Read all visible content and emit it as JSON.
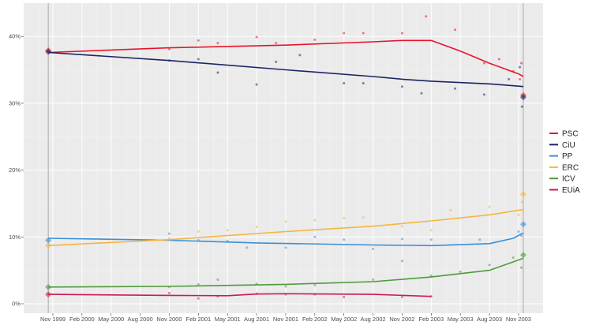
{
  "chart_data": {
    "type": "line",
    "title": "",
    "xlabel": "",
    "ylabel": "",
    "ylim": [
      0,
      45
    ],
    "yticks": [
      0,
      10,
      20,
      30,
      40
    ],
    "ytick_labels": [
      "0%",
      "10%",
      "20%",
      "30%",
      "40%"
    ],
    "xticks": [
      "1999-11-01",
      "2000-02-01",
      "2000-05-01",
      "2000-08-01",
      "2000-11-01",
      "2001-02-01",
      "2001-05-01",
      "2001-08-01",
      "2001-11-01",
      "2002-02-01",
      "2002-05-01",
      "2002-08-01",
      "2002-11-01",
      "2003-02-01",
      "2003-05-01",
      "2003-08-01",
      "2003-11-01"
    ],
    "xtick_labels": [
      "Nov 1999",
      "Feb 2000",
      "May 2000",
      "Aug 2000",
      "Nov 2000",
      "Feb 2001",
      "May 2001",
      "Aug 2001",
      "Nov 2001",
      "Feb 2002",
      "May 2002",
      "Aug 2002",
      "Nov 2002",
      "Feb 2003",
      "May 2003",
      "Aug 2003",
      "Nov 2003"
    ],
    "election_dates": [
      "1999-10-17",
      "2003-11-16"
    ],
    "grid": true,
    "legend_position": "right",
    "series": [
      {
        "name": "PSC",
        "color": "#e8132b",
        "trend": [
          [
            "1999-10-17",
            37.6
          ],
          [
            "2000-11-01",
            38.3
          ],
          [
            "2001-11-01",
            38.7
          ],
          [
            "2002-08-01",
            39.2
          ],
          [
            "2002-11-01",
            39.4
          ],
          [
            "2003-02-01",
            39.4
          ],
          [
            "2003-05-01",
            37.8
          ],
          [
            "2003-08-01",
            36.0
          ],
          [
            "2003-11-01",
            34.4
          ],
          [
            "2003-11-16",
            34.0
          ]
        ],
        "polls": [
          [
            "2000-11-01",
            38.1
          ],
          [
            "2001-02-01",
            39.4
          ],
          [
            "2001-04-01",
            39.0
          ],
          [
            "2001-08-01",
            39.9
          ],
          [
            "2001-10-01",
            39.0
          ],
          [
            "2002-02-01",
            39.5
          ],
          [
            "2002-05-01",
            40.5
          ],
          [
            "2002-07-01",
            40.5
          ],
          [
            "2002-11-01",
            40.5
          ],
          [
            "2003-01-15",
            43.0
          ],
          [
            "2003-04-15",
            41.0
          ],
          [
            "2003-07-15",
            36.0
          ],
          [
            "2003-09-01",
            36.6
          ],
          [
            "2003-10-15",
            34.8
          ],
          [
            "2003-11-05",
            33.6
          ],
          [
            "2003-11-10",
            36.0
          ]
        ],
        "results": [
          [
            "1999-10-17",
            37.9
          ],
          [
            "2003-11-16",
            31.2
          ]
        ]
      },
      {
        "name": "CiU",
        "color": "#1b2462",
        "trend": [
          [
            "1999-10-17",
            37.6
          ],
          [
            "2000-11-01",
            36.4
          ],
          [
            "2001-11-01",
            35.0
          ],
          [
            "2002-08-01",
            34.0
          ],
          [
            "2002-11-01",
            33.6
          ],
          [
            "2003-02-01",
            33.3
          ],
          [
            "2003-08-01",
            32.9
          ],
          [
            "2003-11-16",
            32.5
          ]
        ],
        "polls": [
          [
            "2000-11-01",
            36.4
          ],
          [
            "2001-02-01",
            36.6
          ],
          [
            "2001-04-01",
            34.6
          ],
          [
            "2001-08-01",
            32.8
          ],
          [
            "2001-10-01",
            36.2
          ],
          [
            "2001-12-15",
            37.2
          ],
          [
            "2002-05-01",
            33.0
          ],
          [
            "2002-07-01",
            33.0
          ],
          [
            "2002-11-01",
            32.5
          ],
          [
            "2003-01-01",
            31.5
          ],
          [
            "2003-04-15",
            32.2
          ],
          [
            "2003-07-15",
            31.3
          ],
          [
            "2003-10-01",
            33.6
          ],
          [
            "2003-11-05",
            35.4
          ],
          [
            "2003-11-12",
            29.5
          ]
        ],
        "results": [
          [
            "1999-10-17",
            37.7
          ],
          [
            "2003-11-16",
            30.9
          ]
        ]
      },
      {
        "name": "PP",
        "color": "#3a90d6",
        "trend": [
          [
            "1999-10-17",
            9.8
          ],
          [
            "2000-11-01",
            9.5
          ],
          [
            "2001-08-01",
            9.1
          ],
          [
            "2002-08-01",
            8.8
          ],
          [
            "2003-02-01",
            8.7
          ],
          [
            "2003-08-01",
            9.0
          ],
          [
            "2003-10-15",
            9.8
          ],
          [
            "2003-11-16",
            10.6
          ]
        ],
        "polls": [
          [
            "2000-11-01",
            10.5
          ],
          [
            "2001-02-01",
            9.5
          ],
          [
            "2001-05-01",
            9.4
          ],
          [
            "2001-07-01",
            8.4
          ],
          [
            "2001-11-01",
            8.4
          ],
          [
            "2002-02-01",
            10.0
          ],
          [
            "2002-05-01",
            9.6
          ],
          [
            "2002-08-01",
            8.2
          ],
          [
            "2002-11-01",
            9.7
          ],
          [
            "2003-02-01",
            9.6
          ],
          [
            "2003-07-01",
            9.6
          ],
          [
            "2003-11-01",
            10.8
          ],
          [
            "2003-11-10",
            10.2
          ]
        ],
        "results": [
          [
            "1999-10-17",
            9.5
          ],
          [
            "2003-11-16",
            11.9
          ]
        ]
      },
      {
        "name": "ERC",
        "color": "#f5b541",
        "trend": [
          [
            "1999-10-17",
            8.7
          ],
          [
            "2000-11-01",
            9.6
          ],
          [
            "2001-11-01",
            10.8
          ],
          [
            "2002-08-01",
            11.6
          ],
          [
            "2003-02-01",
            12.4
          ],
          [
            "2003-08-01",
            13.3
          ],
          [
            "2003-11-16",
            14.1
          ]
        ],
        "polls": [
          [
            "2000-11-01",
            9.8
          ],
          [
            "2001-02-01",
            10.8
          ],
          [
            "2001-05-01",
            11.0
          ],
          [
            "2001-08-01",
            11.5
          ],
          [
            "2001-11-01",
            12.3
          ],
          [
            "2002-02-01",
            12.5
          ],
          [
            "2002-05-01",
            12.8
          ],
          [
            "2002-07-01",
            12.9
          ],
          [
            "2002-11-01",
            11.6
          ],
          [
            "2003-02-01",
            11.0
          ],
          [
            "2003-04-01",
            14.0
          ],
          [
            "2003-08-01",
            14.5
          ],
          [
            "2003-11-01",
            13.3
          ],
          [
            "2003-11-12",
            15.2
          ]
        ],
        "results": [
          [
            "1999-10-17",
            8.7
          ],
          [
            "2003-11-16",
            16.4
          ]
        ]
      },
      {
        "name": "ICV",
        "color": "#4f9a3d",
        "trend": [
          [
            "1999-10-17",
            2.5
          ],
          [
            "2000-11-01",
            2.6
          ],
          [
            "2001-11-01",
            2.9
          ],
          [
            "2002-08-01",
            3.3
          ],
          [
            "2003-02-01",
            4.0
          ],
          [
            "2003-08-01",
            5.0
          ],
          [
            "2003-11-16",
            6.8
          ]
        ],
        "polls": [
          [
            "2000-11-01",
            2.5
          ],
          [
            "2001-02-01",
            2.9
          ],
          [
            "2001-04-01",
            3.6
          ],
          [
            "2001-08-01",
            3.0
          ],
          [
            "2001-11-01",
            2.6
          ],
          [
            "2002-02-01",
            2.8
          ],
          [
            "2002-08-01",
            3.6
          ],
          [
            "2002-11-01",
            6.4
          ],
          [
            "2003-02-01",
            4.2
          ],
          [
            "2003-05-01",
            4.8
          ],
          [
            "2003-08-01",
            5.8
          ],
          [
            "2003-10-15",
            6.9
          ],
          [
            "2003-11-10",
            5.4
          ]
        ],
        "results": [
          [
            "1999-10-17",
            2.5
          ],
          [
            "2003-11-16",
            7.3
          ]
        ]
      },
      {
        "name": "EUiA",
        "color": "#cc1a4f",
        "trend": [
          [
            "1999-10-17",
            1.4
          ],
          [
            "2000-11-01",
            1.25
          ],
          [
            "2001-05-01",
            1.2
          ],
          [
            "2001-08-01",
            1.45
          ],
          [
            "2001-11-01",
            1.5
          ],
          [
            "2002-08-01",
            1.4
          ],
          [
            "2003-02-01",
            1.1
          ]
        ],
        "polls": [
          [
            "2000-11-01",
            1.6
          ],
          [
            "2001-02-01",
            0.8
          ],
          [
            "2001-04-01",
            1.1
          ],
          [
            "2001-08-01",
            1.5
          ],
          [
            "2001-11-01",
            1.4
          ],
          [
            "2002-02-01",
            1.4
          ],
          [
            "2002-05-01",
            1.0
          ],
          [
            "2002-11-01",
            1.0
          ],
          [
            "2003-02-01",
            1.1
          ]
        ],
        "results": [
          [
            "1999-10-17",
            1.4
          ]
        ]
      }
    ]
  }
}
